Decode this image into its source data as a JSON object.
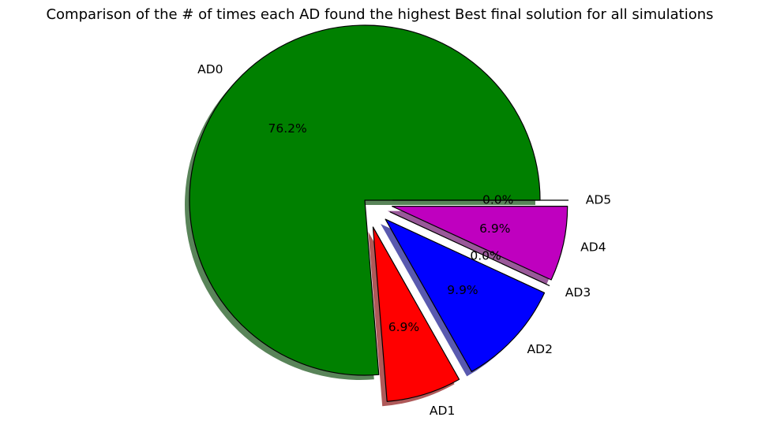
{
  "chart_data": {
    "type": "pie",
    "title": "Comparison of the # of times each AD found the highest Best final solution for all simulations",
    "categories": [
      "AD0",
      "AD1",
      "AD2",
      "AD3",
      "AD4",
      "AD5"
    ],
    "values": [
      76.2,
      6.9,
      9.9,
      0.0,
      6.9,
      0.0
    ],
    "percent_labels": [
      "76.2%",
      "6.9%",
      "9.9%",
      "0.0%",
      "6.9%",
      "0.0%"
    ],
    "colors": [
      "#008000",
      "#ff0000",
      "#0000ff",
      "#00bfbf",
      "#bf00bf",
      "#bfbf00"
    ],
    "exploded": true,
    "shadow": true,
    "legend": "none"
  }
}
